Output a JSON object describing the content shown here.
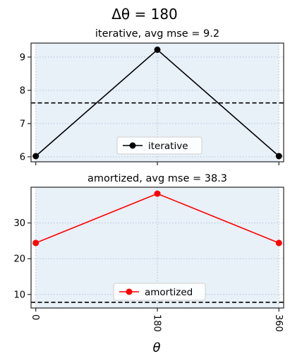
{
  "figure": {
    "suptitle": "Δθ = 180",
    "xlabel": "θ"
  },
  "chart_data": [
    {
      "type": "line",
      "title": "iterative, avg mse = 9.2",
      "x": [
        0,
        180,
        360
      ],
      "series": [
        {
          "name": "iterative",
          "values": [
            6.02,
            9.22,
            6.02
          ],
          "color": "#000000",
          "marker": "circle"
        }
      ],
      "reference_line": {
        "y": 7.62,
        "style": "dashed",
        "color": "#000000"
      },
      "xlim": [
        -7,
        367
      ],
      "ylim": [
        5.85,
        9.42
      ],
      "yticks": [
        6,
        7,
        8,
        9
      ],
      "xticks": [
        0,
        180,
        360
      ],
      "x_tick_labels_shown": false,
      "grid": true,
      "highlight_span": [
        0,
        360
      ],
      "highlight_color": "#e8f0f8",
      "legend_position": "lower-center"
    },
    {
      "type": "line",
      "title": "amortized, avg mse = 38.3",
      "x": [
        0,
        180,
        360
      ],
      "series": [
        {
          "name": "amortized",
          "values": [
            24.4,
            38.2,
            24.4
          ],
          "color": "#ff0000",
          "marker": "circle"
        }
      ],
      "reference_line": {
        "y": 7.8,
        "style": "dashed",
        "color": "#000000"
      },
      "xlim": [
        -7,
        367
      ],
      "ylim": [
        6.2,
        40
      ],
      "yticks": [
        10,
        20,
        30
      ],
      "xticks": [
        0,
        180,
        360
      ],
      "x_tick_labels_shown": true,
      "x_tick_rotation": -90,
      "grid": true,
      "highlight_span": [
        0,
        360
      ],
      "highlight_color": "#e8f0f8",
      "legend_position": "lower-center"
    }
  ]
}
